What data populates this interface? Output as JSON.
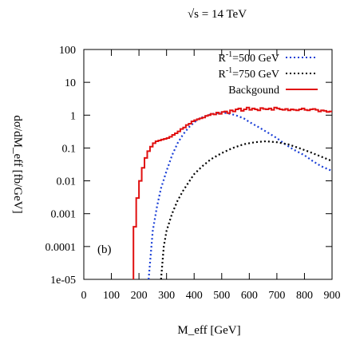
{
  "chart_data": {
    "type": "line",
    "title": "√s = 14 TeV",
    "xlabel": "M_eff [GeV]",
    "ylabel": "dσ/dM_eff [fb/GeV]",
    "panel_label": "(b)",
    "x_scale": "linear",
    "y_scale": "log",
    "xlim": [
      0,
      900
    ],
    "ylim": [
      1e-05,
      100
    ],
    "x_ticks": [
      0,
      100,
      200,
      300,
      400,
      500,
      600,
      700,
      800,
      900
    ],
    "x_tick_labels": [
      "0",
      "100",
      "200",
      "300",
      "400",
      "500",
      "600",
      "700",
      "800",
      "900"
    ],
    "y_ticks": [
      1e-05,
      0.0001,
      0.001,
      0.01,
      0.1,
      1,
      10,
      100
    ],
    "y_tick_labels": [
      "1e-05",
      "0.0001",
      "0.001",
      "0.01",
      "0.1",
      "1",
      "10",
      "100"
    ],
    "grid": false,
    "legend_position": "top-right",
    "series": [
      {
        "name": "R⁻¹=500 GeV",
        "legend_prefix": "R",
        "legend_sup": "-1",
        "legend_rest": "=500 GeV",
        "color": "#1a3fd6",
        "style": "dotted",
        "x": [
          235,
          250,
          265,
          280,
          300,
          320,
          340,
          360,
          380,
          400,
          420,
          450,
          480,
          500,
          520,
          550,
          580,
          600,
          630,
          660,
          700,
          730,
          760,
          800,
          830,
          860,
          900
        ],
        "y": [
          1e-05,
          0.0003,
          0.0016,
          0.006,
          0.02,
          0.06,
          0.14,
          0.26,
          0.42,
          0.6,
          0.8,
          1.0,
          1.15,
          1.2,
          1.15,
          1.0,
          0.8,
          0.62,
          0.45,
          0.32,
          0.2,
          0.13,
          0.09,
          0.06,
          0.04,
          0.028,
          0.02
        ]
      },
      {
        "name": "R⁻¹=750 GeV",
        "legend_prefix": "R",
        "legend_sup": "-1",
        "legend_rest": "=750 GeV",
        "color": "#000000",
        "style": "dotted",
        "x": [
          280,
          290,
          300,
          320,
          340,
          360,
          380,
          400,
          430,
          460,
          500,
          540,
          580,
          620,
          660,
          700,
          740,
          780,
          820,
          860,
          900
        ],
        "y": [
          1e-05,
          0.0001,
          0.0003,
          0.001,
          0.0025,
          0.005,
          0.009,
          0.016,
          0.028,
          0.045,
          0.07,
          0.1,
          0.13,
          0.15,
          0.16,
          0.15,
          0.13,
          0.1,
          0.075,
          0.055,
          0.04
        ]
      },
      {
        "name": "Backgound",
        "color": "#e01010",
        "style": "solid-step",
        "x": [
          180,
          190,
          200,
          210,
          220,
          230,
          240,
          250,
          260,
          270,
          280,
          290,
          300,
          310,
          320,
          330,
          340,
          350,
          360,
          370,
          380,
          390,
          400,
          410,
          420,
          430,
          440,
          450,
          460,
          470,
          480,
          490,
          500,
          510,
          520,
          530,
          540,
          550,
          560,
          570,
          580,
          590,
          600,
          610,
          620,
          630,
          640,
          650,
          660,
          670,
          680,
          690,
          700,
          710,
          720,
          730,
          740,
          750,
          760,
          770,
          780,
          790,
          800,
          810,
          820,
          830,
          840,
          850,
          860,
          870,
          880,
          890
        ],
        "y": [
          0.0004,
          0.003,
          0.01,
          0.025,
          0.05,
          0.08,
          0.11,
          0.14,
          0.16,
          0.17,
          0.18,
          0.19,
          0.2,
          0.22,
          0.25,
          0.28,
          0.32,
          0.38,
          0.42,
          0.5,
          0.55,
          0.65,
          0.7,
          0.75,
          0.8,
          0.85,
          0.95,
          1.0,
          1.1,
          1.05,
          1.2,
          1.1,
          1.25,
          1.3,
          1.15,
          1.4,
          1.3,
          1.5,
          1.6,
          1.35,
          1.5,
          1.7,
          1.45,
          1.6,
          1.5,
          1.4,
          1.65,
          1.55,
          1.5,
          1.6,
          1.45,
          1.7,
          1.6,
          1.5,
          1.45,
          1.55,
          1.4,
          1.5,
          1.45,
          1.4,
          1.5,
          1.6,
          1.45,
          1.4,
          1.5,
          1.55,
          1.45,
          1.3,
          1.4,
          1.35,
          1.25,
          1.3
        ]
      }
    ]
  }
}
